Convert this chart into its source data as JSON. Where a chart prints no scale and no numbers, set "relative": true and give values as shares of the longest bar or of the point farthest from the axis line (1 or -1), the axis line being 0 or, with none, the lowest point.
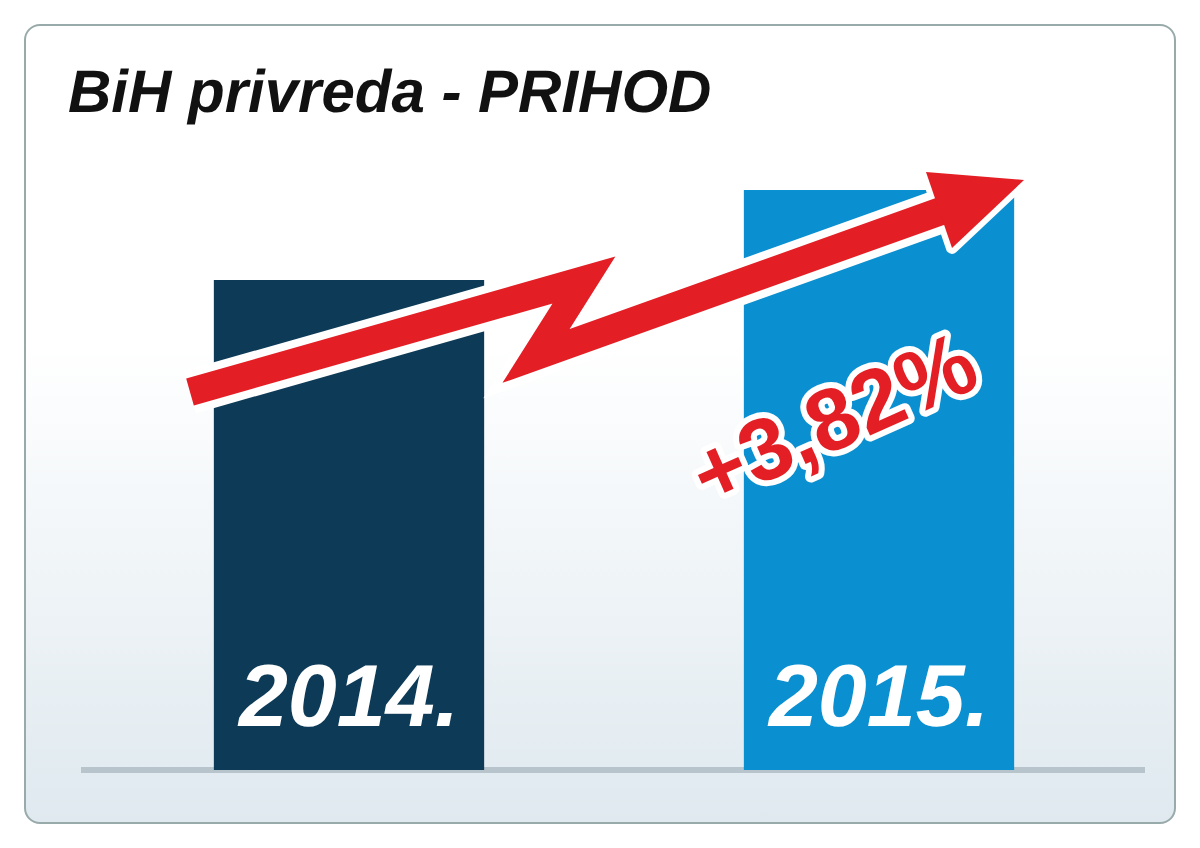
{
  "chart_data": {
    "type": "bar",
    "title": "BiH privreda - PRIHOD",
    "categories": [
      "2014.",
      "2015."
    ],
    "values": [
      0.845,
      1
    ],
    "colors": [
      "#0d3a57",
      "#0a8fd0"
    ],
    "relative": true,
    "annotations": [
      "+3,82%"
    ]
  }
}
